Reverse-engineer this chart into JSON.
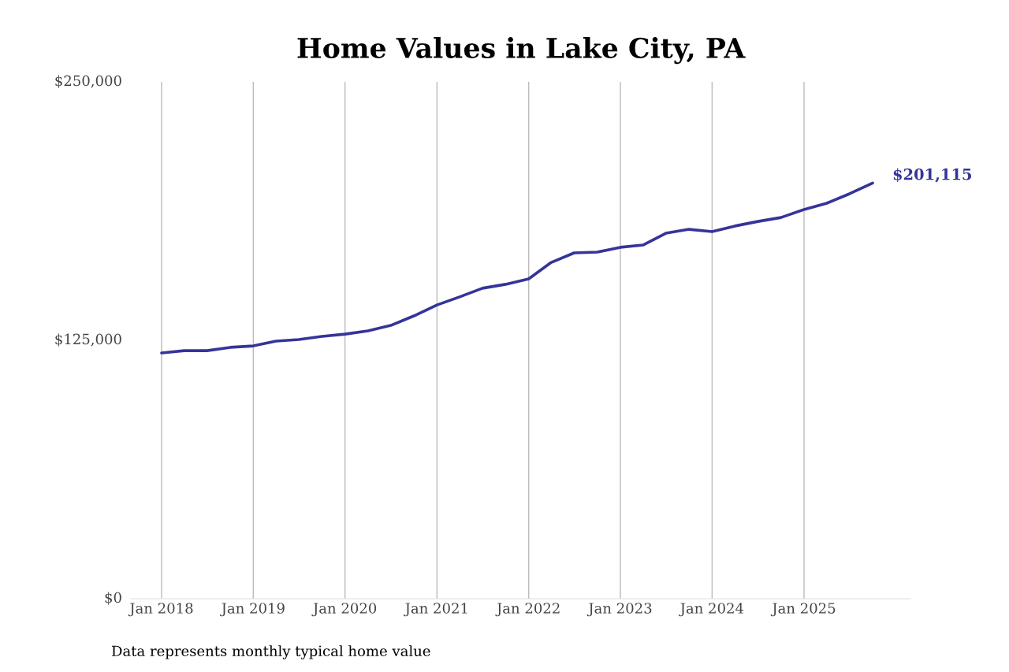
{
  "chart_data": {
    "type": "line",
    "title": "Home Values in Lake City, PA",
    "x": [
      "2018-01",
      "2018-04",
      "2018-07",
      "2018-10",
      "2019-01",
      "2019-04",
      "2019-07",
      "2019-10",
      "2020-01",
      "2020-04",
      "2020-07",
      "2020-10",
      "2021-01",
      "2021-04",
      "2021-07",
      "2021-10",
      "2022-01",
      "2022-04",
      "2022-07",
      "2022-10",
      "2023-01",
      "2023-04",
      "2023-07",
      "2023-10",
      "2024-01",
      "2024-04",
      "2024-07",
      "2024-10",
      "2025-01",
      "2025-04",
      "2025-07",
      "2025-10"
    ],
    "series": [
      {
        "color": "#35349a",
        "values": [
          118900,
          120000,
          120000,
          121600,
          122300,
          124600,
          125400,
          126900,
          128000,
          129600,
          132200,
          136800,
          142100,
          146000,
          150200,
          152100,
          154700,
          162700,
          167300,
          167700,
          170000,
          171100,
          176800,
          178700,
          177600,
          180300,
          182500,
          184400,
          188300,
          191300,
          195900,
          201115
        ]
      }
    ],
    "ylim": [
      0,
      250000
    ],
    "yticks": [
      {
        "value": 0,
        "label": "$0"
      },
      {
        "value": 125000,
        "label": "$125,000"
      },
      {
        "value": 250000,
        "label": "$250,000"
      }
    ],
    "xlim": [
      "2017-09-01",
      "2026-03-01"
    ],
    "xticks": [
      {
        "value": "2018-01-01",
        "label": "Jan 2018"
      },
      {
        "value": "2019-01-01",
        "label": "Jan 2019"
      },
      {
        "value": "2020-01-01",
        "label": "Jan 2020"
      },
      {
        "value": "2021-01-01",
        "label": "Jan 2021"
      },
      {
        "value": "2022-01-01",
        "label": "Jan 2022"
      },
      {
        "value": "2023-01-01",
        "label": "Jan 2023"
      },
      {
        "value": "2024-01-01",
        "label": "Jan 2024"
      },
      {
        "value": "2025-01-01",
        "label": "Jan 2025"
      }
    ],
    "grid": "x",
    "legend": false,
    "marker": "none",
    "line_style": "solid",
    "annotations": [
      {
        "text": "$201,115",
        "x": "2025-10",
        "y": 201115
      },
      "Data represents monthly typical home value"
    ]
  }
}
